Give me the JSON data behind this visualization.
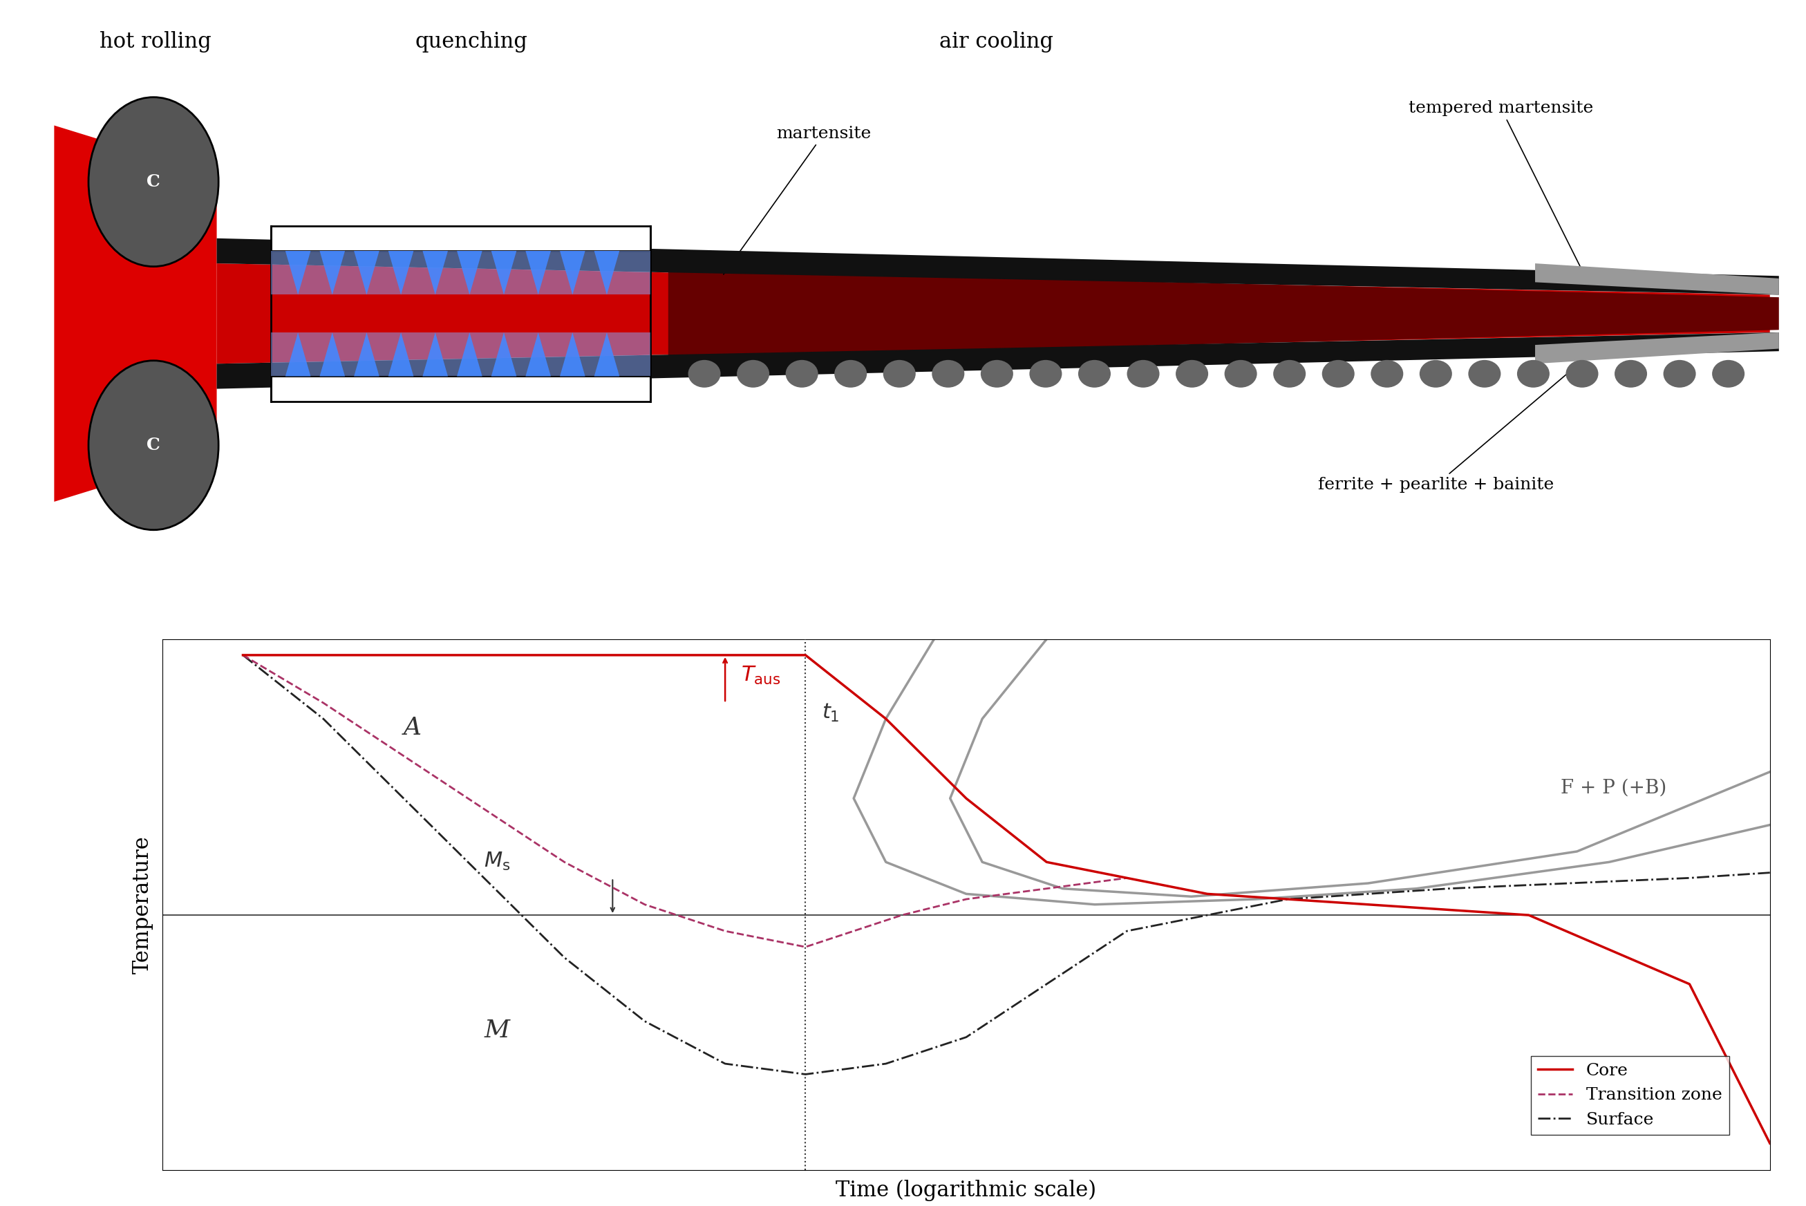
{
  "title_hot_rolling": "hot rolling",
  "title_quenching": "quenching",
  "title_air_cooling": "air cooling",
  "label_martensite": "martensite",
  "label_tempered_martensite": "tempered martensite",
  "label_ferrite": "ferrite + pearlite + bainite",
  "xlabel": "Time (logarithmic scale)",
  "ylabel": "Temperature",
  "label_A": "A",
  "label_M": "M",
  "label_Ms": "M\\u209›",
  "label_Taus": "T\\u2090\\u1d64\\u209›",
  "label_t1": "t\\u2081",
  "label_FP": "F + P (+B)",
  "legend_core": "Core",
  "legend_transition": "Transition zone",
  "legend_surface": "Surface",
  "color_red": "#CC0000",
  "color_pink_dashed": "#AA3366",
  "color_gray": "#888888",
  "color_dark": "#222222",
  "background": "#ffffff"
}
